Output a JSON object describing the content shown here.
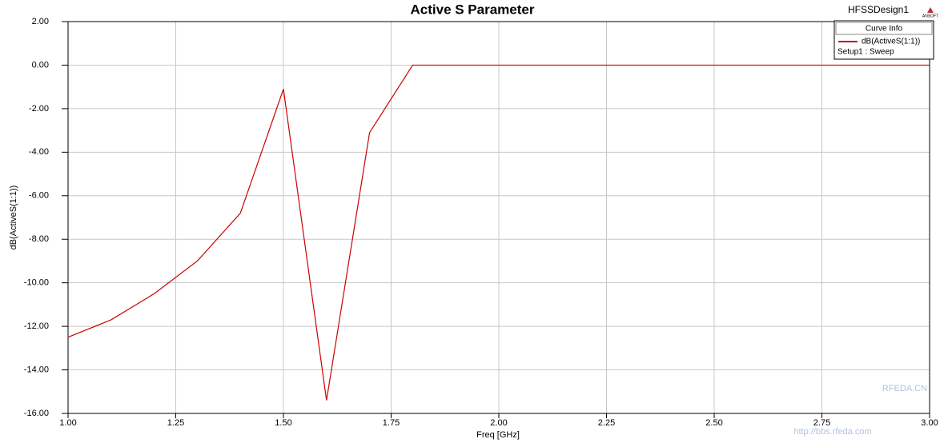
{
  "chart_data": {
    "type": "line",
    "title": "Active S Parameter",
    "design_name": "HFSSDesign1",
    "logo": "ANSOFT",
    "x_label": "Freq [GHz]",
    "y_label": "dB(ActiveS(1:1))",
    "legend_title": "Curve Info",
    "legend_subtitle": "Setup1 : Sweep",
    "x": [
      1.0,
      1.1,
      1.2,
      1.3,
      1.4,
      1.5,
      1.6,
      1.7,
      1.8,
      1.9,
      2.0,
      2.1,
      2.2,
      2.3,
      2.4,
      2.5,
      2.6,
      2.7,
      2.8,
      2.9,
      3.0
    ],
    "series": [
      {
        "name": "dB(ActiveS(1:1))",
        "color": "#cc0000",
        "values": [
          -12.5,
          -11.7,
          -10.5,
          -9.0,
          -6.8,
          -1.1,
          -15.4,
          -3.1,
          0,
          0,
          0,
          0,
          0,
          0,
          0,
          0,
          0,
          0,
          0,
          0,
          0
        ]
      }
    ],
    "xlim": [
      1.0,
      3.0
    ],
    "xticks": [
      {
        "value": 1.0,
        "label": "1.00"
      },
      {
        "value": 1.25,
        "label": "1.25"
      },
      {
        "value": 1.5,
        "label": "1.50"
      },
      {
        "value": 1.75,
        "label": "1.75"
      },
      {
        "value": 2.0,
        "label": "2.00"
      },
      {
        "value": 2.25,
        "label": "2.25"
      },
      {
        "value": 2.5,
        "label": "2.50"
      },
      {
        "value": 2.75,
        "label": "2.75"
      },
      {
        "value": 3.0,
        "label": "3.00"
      }
    ],
    "ylim": [
      -16,
      2
    ],
    "yticks": [
      {
        "value": -16,
        "label": "-16.00"
      },
      {
        "value": -14,
        "label": "-14.00"
      },
      {
        "value": -12,
        "label": "-12.00"
      },
      {
        "value": -10,
        "label": "-10.00"
      },
      {
        "value": -8,
        "label": "-8.00"
      },
      {
        "value": -6,
        "label": "-6.00"
      },
      {
        "value": -4,
        "label": "-4.00"
      },
      {
        "value": -2,
        "label": "-2.00"
      },
      {
        "value": 0,
        "label": "0.00"
      },
      {
        "value": 2,
        "label": "2.00"
      }
    ],
    "grid": true,
    "watermark": [
      "RFEDA.CN",
      "http://bbs.rfeda.com"
    ]
  }
}
